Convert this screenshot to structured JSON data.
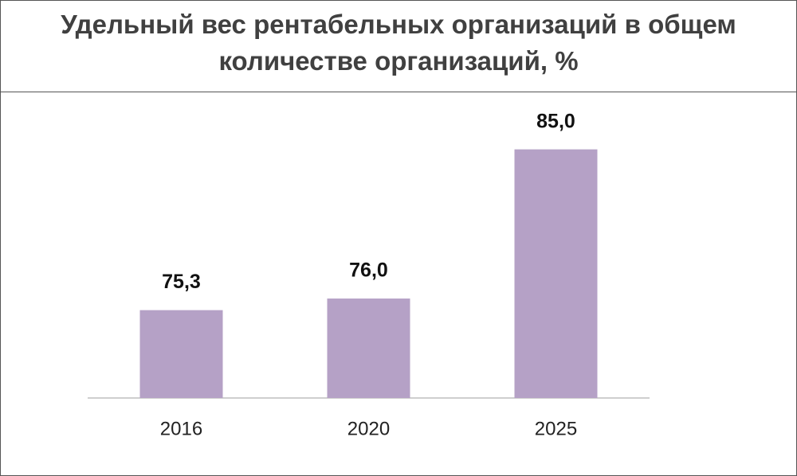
{
  "chart_data": {
    "type": "bar",
    "title": "Удельный вес рентабельных организаций в общем количестве организаций, %",
    "categories": [
      "2016",
      "2020",
      "2025"
    ],
    "values": [
      75.3,
      76.0,
      85.0
    ],
    "value_labels": [
      "75,3",
      "76,0",
      "85,0"
    ],
    "color": "#b5a1c6",
    "ylim": [
      70,
      87
    ]
  }
}
